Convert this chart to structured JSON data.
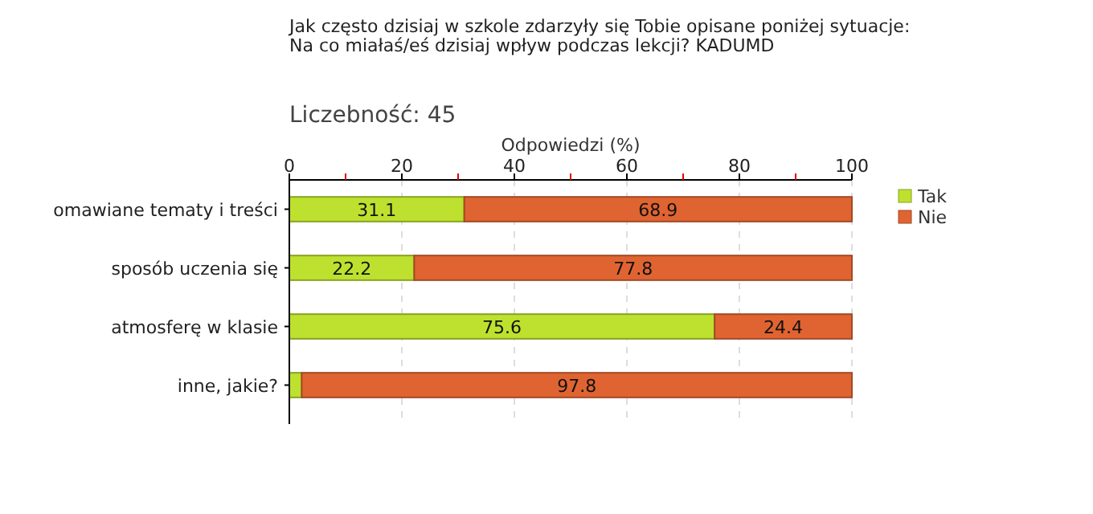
{
  "chart_data": {
    "type": "bar",
    "orientation": "horizontal",
    "stacked": true,
    "title": "Jak często dzisiaj w szkole zdarzyły się Tobie opisane poniżej sytuacje:\nNa co miałaś/eś dzisiaj wpływ podczas lekcji? KADUMD",
    "subtitle": "Liczebność: 45",
    "xlabel": "Odpowiedzi (%)",
    "categories": [
      "omawiane tematy i treści",
      "sposób uczenia się",
      "atmosferę w klasie",
      "inne, jakie?"
    ],
    "series": [
      {
        "name": "Tak",
        "color": "#bde12e",
        "values": [
          31.1,
          22.2,
          75.6,
          2.2
        ],
        "value_labels": [
          "31.1",
          "22.2",
          "75.6",
          null
        ]
      },
      {
        "name": "Nie",
        "color": "#e06431",
        "values": [
          68.9,
          77.8,
          24.4,
          97.8
        ],
        "value_labels": [
          "68.9",
          "77.8",
          "24.4",
          "97.8"
        ]
      }
    ],
    "xlim": [
      0,
      100
    ],
    "xticks": [
      0,
      {
        "value": 10,
        "label": null
      },
      20,
      {
        "value": 30,
        "label": null
      },
      40,
      {
        "value": 50,
        "label": null
      },
      60,
      {
        "value": 70,
        "label": null
      },
      80,
      {
        "value": 90,
        "label": null
      },
      100
    ],
    "grid": "x",
    "legend": "top right"
  }
}
